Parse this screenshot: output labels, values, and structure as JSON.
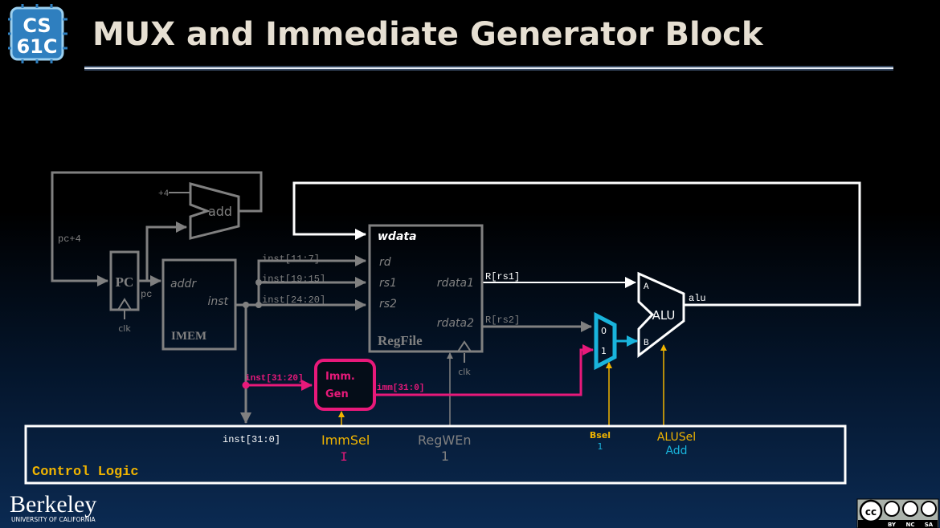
{
  "slide": {
    "title": "MUX and Immediate Generator Block",
    "logo": {
      "line1": "CS",
      "line2": "61C"
    },
    "footer_logo": {
      "name": "Berkeley",
      "subtitle": "UNIVERSITY OF CALIFORNIA"
    },
    "license_badge": {
      "labels": [
        "BY",
        "NC",
        "SA"
      ]
    }
  },
  "diagram": {
    "pc": {
      "label": "PC",
      "output": "pc",
      "clk": "clk",
      "feedback": "pc+4"
    },
    "adder": {
      "label": "add",
      "const": "+4"
    },
    "imem": {
      "label": "IMEM",
      "addr": "addr",
      "inst": "inst"
    },
    "wires": {
      "rd": "inst[11:7]",
      "rs1": "inst[19:15]",
      "rs2": "inst[24:20]",
      "imm_in": "inst[31:20]",
      "imm_out": "imm[31:0]",
      "inst_all": "inst[31:0]",
      "rdata1": "R[rs1]",
      "rdata2": "R[rs2]",
      "alu_out": "alu"
    },
    "regfile": {
      "label": "RegFile",
      "wdata": "wdata",
      "rd": "rd",
      "rs1": "rs1",
      "rs2": "rs2",
      "rdata1": "rdata1",
      "rdata2": "rdata2",
      "clk": "clk"
    },
    "immgen": {
      "line1": "Imm.",
      "line2": "Gen"
    },
    "bmux": {
      "in0": "0",
      "in1": "1"
    },
    "alu": {
      "label": "ALU",
      "a": "A",
      "b": "B"
    },
    "control": {
      "label": "Control Logic",
      "immsel": {
        "name": "ImmSel",
        "value": "I"
      },
      "regwen": {
        "name": "RegWEn",
        "value": "1"
      },
      "bsel": {
        "name": "Bsel",
        "value": "1"
      },
      "alusel": {
        "name": "ALUSel",
        "value": "Add"
      }
    },
    "colors": {
      "inactive": "#808080",
      "active": "#ffffff",
      "immgen": "#e8197a",
      "mux": "#19b4dc",
      "control": "#f0b400"
    }
  }
}
